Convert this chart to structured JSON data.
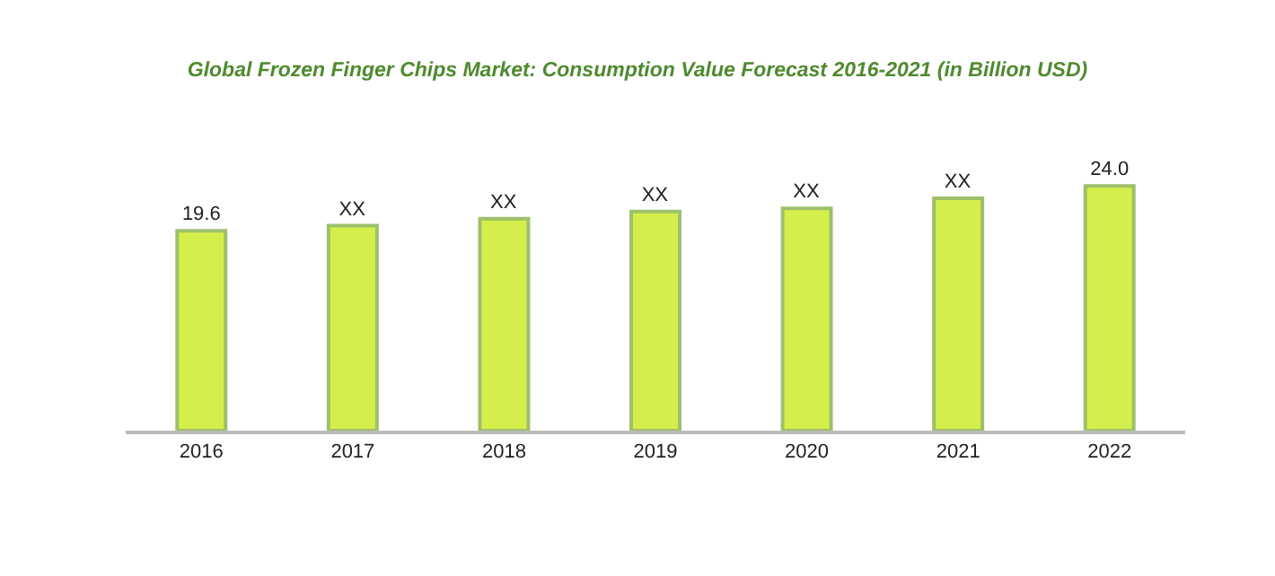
{
  "chart_data": {
    "type": "bar",
    "title": "Global Frozen Finger Chips Market: Consumption Value Forecast 2016-2021 (in Billion USD)",
    "categories": [
      "2016",
      "2017",
      "2018",
      "2019",
      "2020",
      "2021",
      "2022"
    ],
    "values": [
      19.6,
      20.1,
      20.8,
      21.5,
      21.8,
      22.8,
      24.0
    ],
    "value_labels": [
      "19.6",
      "XX",
      "XX",
      "XX",
      "XX",
      "XX",
      "24.0"
    ],
    "color": "#d4ef4c",
    "tick_labels": "x"
  }
}
